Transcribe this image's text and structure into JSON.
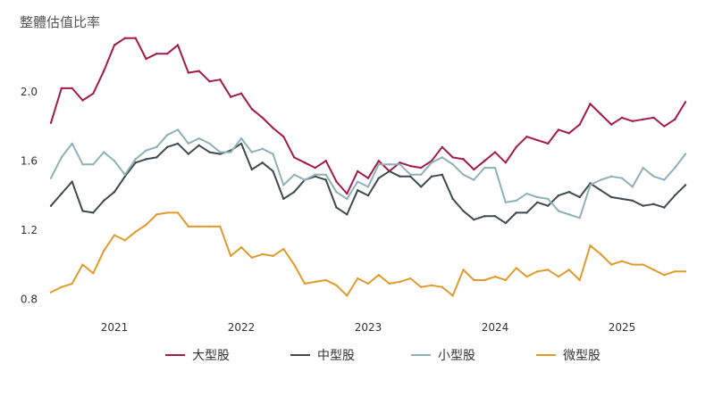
{
  "chart_data": {
    "type": "line",
    "title": "整體估值比率",
    "xlabel": "",
    "ylabel": "",
    "x_start": 2020.5,
    "x_step": 0.0833333,
    "xlim": [
      2020.5,
      2025.5
    ],
    "ylim": [
      0.75,
      2.35
    ],
    "yticks": [
      0.8,
      1.2,
      1.6,
      2.0
    ],
    "ytick_labels": [
      "0.8",
      "1.2",
      "1.6",
      "2.0"
    ],
    "xticks": [
      2021,
      2022,
      2023,
      2024,
      2025
    ],
    "xtick_labels": [
      "2021",
      "2022",
      "2023",
      "2024",
      "2025"
    ],
    "grid": false,
    "legend_position": "bottom",
    "series": [
      {
        "name": "大型股",
        "color": "#a31a49",
        "values": [
          1.82,
          2.02,
          2.02,
          1.95,
          1.99,
          2.12,
          2.27,
          2.31,
          2.31,
          2.19,
          2.22,
          2.22,
          2.27,
          2.11,
          2.12,
          2.06,
          2.07,
          1.97,
          1.99,
          1.9,
          1.85,
          1.79,
          1.74,
          1.62,
          1.59,
          1.56,
          1.6,
          1.48,
          1.41,
          1.54,
          1.5,
          1.6,
          1.54,
          1.59,
          1.57,
          1.56,
          1.6,
          1.68,
          1.62,
          1.61,
          1.55,
          1.6,
          1.65,
          1.59,
          1.68,
          1.74,
          1.72,
          1.7,
          1.78,
          1.76,
          1.81,
          1.93,
          1.87,
          1.81,
          1.85,
          1.83,
          1.84,
          1.85,
          1.8,
          1.84,
          1.94
        ]
      },
      {
        "name": "中型股",
        "color": "#3f4a4b",
        "values": [
          1.34,
          1.41,
          1.48,
          1.31,
          1.3,
          1.37,
          1.42,
          1.51,
          1.59,
          1.61,
          1.62,
          1.68,
          1.7,
          1.64,
          1.69,
          1.65,
          1.64,
          1.66,
          1.7,
          1.55,
          1.59,
          1.54,
          1.38,
          1.42,
          1.49,
          1.51,
          1.49,
          1.33,
          1.29,
          1.43,
          1.4,
          1.5,
          1.54,
          1.51,
          1.51,
          1.45,
          1.51,
          1.52,
          1.38,
          1.31,
          1.26,
          1.28,
          1.28,
          1.24,
          1.3,
          1.3,
          1.36,
          1.34,
          1.4,
          1.42,
          1.39,
          1.47,
          1.43,
          1.39,
          1.38,
          1.37,
          1.34,
          1.35,
          1.33,
          1.4,
          1.46
        ]
      },
      {
        "name": "小型股",
        "color": "#8fb0b7",
        "values": [
          1.5,
          1.62,
          1.7,
          1.58,
          1.58,
          1.65,
          1.6,
          1.52,
          1.61,
          1.66,
          1.68,
          1.75,
          1.78,
          1.7,
          1.73,
          1.7,
          1.65,
          1.65,
          1.73,
          1.65,
          1.67,
          1.64,
          1.46,
          1.52,
          1.49,
          1.52,
          1.52,
          1.42,
          1.38,
          1.48,
          1.45,
          1.58,
          1.58,
          1.58,
          1.52,
          1.52,
          1.59,
          1.62,
          1.58,
          1.52,
          1.49,
          1.56,
          1.56,
          1.36,
          1.37,
          1.41,
          1.39,
          1.38,
          1.31,
          1.29,
          1.27,
          1.46,
          1.49,
          1.51,
          1.5,
          1.45,
          1.56,
          1.51,
          1.49,
          1.56,
          1.64
        ]
      },
      {
        "name": "微型股",
        "color": "#e09b2c",
        "values": [
          0.84,
          0.87,
          0.89,
          1.0,
          0.95,
          1.08,
          1.17,
          1.14,
          1.19,
          1.23,
          1.29,
          1.3,
          1.3,
          1.22,
          1.22,
          1.22,
          1.22,
          1.05,
          1.1,
          1.04,
          1.06,
          1.05,
          1.09,
          1.0,
          0.89,
          0.9,
          0.91,
          0.88,
          0.82,
          0.92,
          0.89,
          0.94,
          0.89,
          0.9,
          0.92,
          0.87,
          0.88,
          0.87,
          0.82,
          0.97,
          0.91,
          0.91,
          0.93,
          0.91,
          0.98,
          0.93,
          0.96,
          0.97,
          0.93,
          0.97,
          0.91,
          1.11,
          1.06,
          1.0,
          1.02,
          1.0,
          1.0,
          0.97,
          0.94,
          0.96,
          0.96
        ]
      }
    ]
  }
}
